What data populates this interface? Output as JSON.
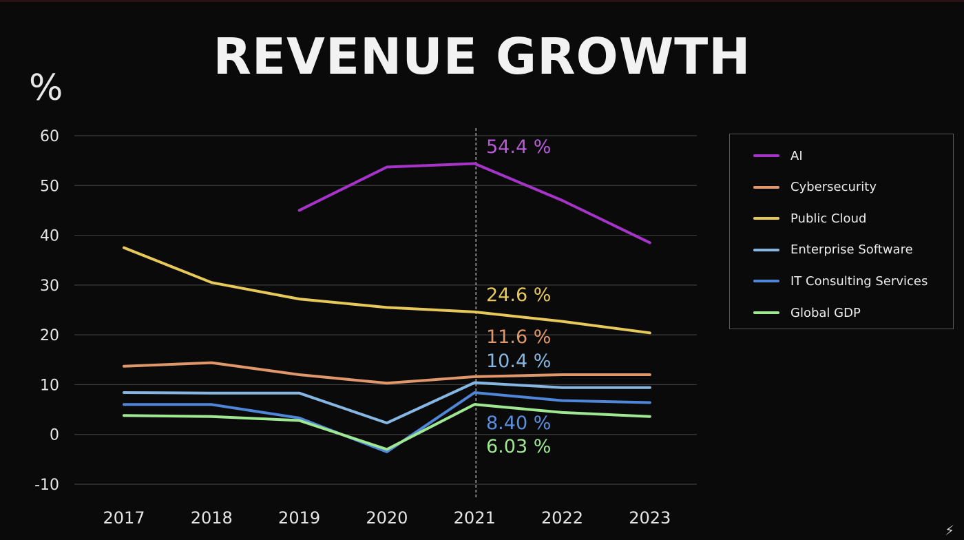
{
  "chart_data": {
    "type": "line",
    "title": "REVENUE GROWTH",
    "ylabel": "%",
    "xlabel": "",
    "ylim": [
      -10,
      60
    ],
    "yticks": [
      "60",
      "50",
      "40",
      "30",
      "20",
      "10",
      "0",
      "-10"
    ],
    "categories": [
      "2017",
      "2018",
      "2019",
      "2020",
      "2021",
      "2022",
      "2023"
    ],
    "highlight_category": "2021",
    "grid": true,
    "legend_position": "right",
    "series": [
      {
        "name": "AI",
        "color": "#a634c9",
        "values": [
          null,
          null,
          45.0,
          53.7,
          54.4,
          47.0,
          38.5
        ],
        "label": "54.4 %",
        "label_color": "#b65ad6"
      },
      {
        "name": "Cybersecurity",
        "color": "#e0976a",
        "values": [
          13.7,
          14.4,
          12.0,
          10.3,
          11.6,
          12.0,
          12.0
        ],
        "label": "11.6 %",
        "label_color": "#e0976a"
      },
      {
        "name": "Public Cloud",
        "color": "#e7c95a",
        "values": [
          37.5,
          30.5,
          27.2,
          25.5,
          24.6,
          22.7,
          20.4
        ],
        "label": "24.6 %",
        "label_color": "#e7c95a"
      },
      {
        "name": "Enterprise Software",
        "color": "#86b7e3",
        "values": [
          8.4,
          8.3,
          8.3,
          2.3,
          10.4,
          9.4,
          9.4
        ],
        "label": "10.4 %",
        "label_color": "#86b7e3"
      },
      {
        "name": "IT Consulting Services",
        "color": "#4f86d8",
        "values": [
          6.0,
          6.0,
          3.3,
          -3.5,
          8.4,
          6.8,
          6.4
        ],
        "label": "8.40 %",
        "label_color": "#5a8fe0"
      },
      {
        "name": "Global GDP",
        "color": "#9fe892",
        "values": [
          3.8,
          3.6,
          2.8,
          -3.0,
          6.03,
          4.4,
          3.6
        ],
        "label": "6.03 %",
        "label_color": "#9fe892"
      }
    ]
  },
  "corner_icon": "runner-icon",
  "corner_glyph": "⚡"
}
